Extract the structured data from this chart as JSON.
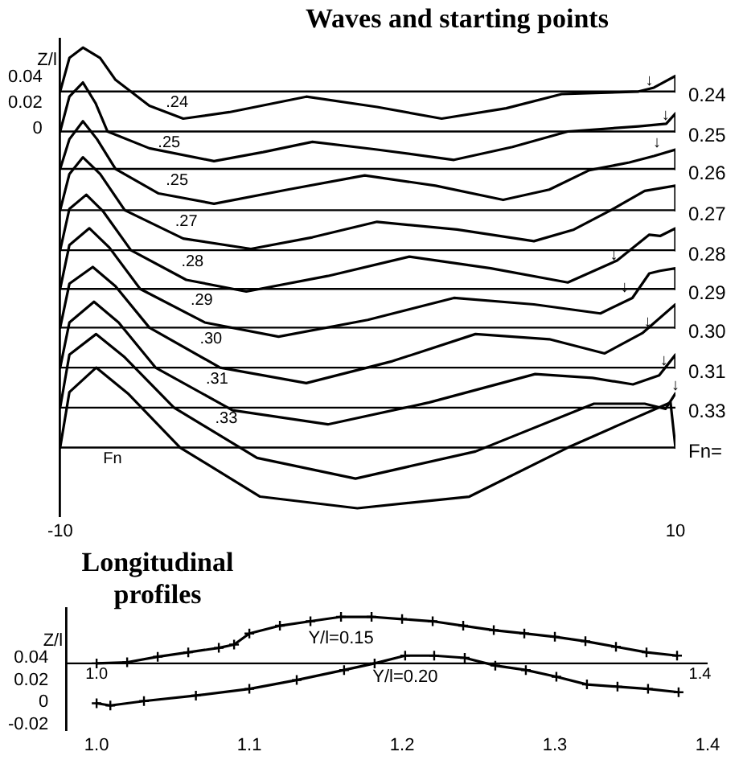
{
  "chart_data": [
    {
      "type": "line",
      "title": "Waves and starting points",
      "ylabel": "Z/l",
      "xlim": [
        -10,
        10
      ],
      "ylim": [
        -0.3,
        0.07
      ],
      "xticks": [
        -10,
        10
      ],
      "yticks": [
        0,
        0.02,
        0.04
      ],
      "grid": false,
      "marker": "none",
      "line_style": "solid",
      "series": [
        {
          "name": "0.24",
          "color": "#000000",
          "x": [
            -10,
            -9.7,
            -9.26,
            -8.7,
            -8.2,
            -7.1,
            -6.0,
            -4.5,
            -2.0,
            0.3,
            2.4,
            4.5,
            6.3,
            8.8,
            9.3,
            10,
            10
          ],
          "values": [
            0.029,
            0.055,
            0.063,
            0.055,
            0.038,
            0.018,
            0.008,
            0.013,
            0.025,
            0.017,
            0.008,
            0.016,
            0.027,
            0.029,
            0.032,
            0.041,
            0.029
          ]
        },
        {
          "name": "0.25",
          "color": "#000000",
          "x": [
            -10,
            -9.7,
            -9.26,
            -8.85,
            -8.46,
            -7.1,
            -5.0,
            -3.4,
            -1.8,
            0.3,
            2.8,
            4.7,
            6.5,
            8.8,
            9.7,
            10,
            10
          ],
          "values": [
            -0.002,
            0.025,
            0.036,
            0.02,
            -0.002,
            -0.015,
            -0.025,
            -0.018,
            -0.01,
            -0.016,
            -0.024,
            -0.014,
            -0.002,
            0.002,
            0.004,
            0.012,
            -0.002
          ]
        },
        {
          "name": "0.26",
          "color": "#000000",
          "x": [
            -10,
            -9.7,
            -9.26,
            -8.8,
            -8.2,
            -6.8,
            -5.0,
            -2.6,
            -0.1,
            2.2,
            4.4,
            5.9,
            7.2,
            8.5,
            9.3,
            10,
            10
          ],
          "values": [
            -0.031,
            -0.008,
            0.006,
            -0.008,
            -0.031,
            -0.05,
            -0.058,
            -0.047,
            -0.036,
            -0.044,
            -0.055,
            -0.047,
            -0.032,
            -0.026,
            -0.021,
            -0.016,
            -0.031
          ]
        },
        {
          "name": "0.27",
          "color": "#000000",
          "x": [
            -10,
            -9.7,
            -9.26,
            -8.7,
            -7.9,
            -6.0,
            -3.8,
            -1.8,
            0.3,
            2.9,
            5.4,
            6.7,
            7.9,
            9.0,
            10,
            10
          ],
          "values": [
            -0.063,
            -0.035,
            -0.022,
            -0.035,
            -0.063,
            -0.085,
            -0.093,
            -0.084,
            -0.072,
            -0.078,
            -0.087,
            -0.078,
            -0.063,
            -0.048,
            -0.044,
            -0.063
          ]
        },
        {
          "name": "0.28",
          "color": "#000000",
          "x": [
            -10,
            -9.7,
            -9.15,
            -8.6,
            -7.7,
            -5.9,
            -3.95,
            -1.3,
            1.35,
            4.0,
            6.5,
            8.1,
            9.15,
            9.5,
            10,
            10
          ],
          "values": [
            -0.094,
            -0.062,
            -0.051,
            -0.064,
            -0.094,
            -0.117,
            -0.126,
            -0.114,
            -0.099,
            -0.108,
            -0.119,
            -0.102,
            -0.082,
            -0.083,
            -0.077,
            -0.094
          ]
        },
        {
          "name": "0.29",
          "color": "#000000",
          "x": [
            -10,
            -9.7,
            -9.05,
            -8.4,
            -7.4,
            -5.3,
            -2.9,
            0,
            2.8,
            5.4,
            7.56,
            8.6,
            9.15,
            9.5,
            10,
            10
          ],
          "values": [
            -0.124,
            -0.09,
            -0.077,
            -0.092,
            -0.124,
            -0.15,
            -0.161,
            -0.148,
            -0.131,
            -0.136,
            -0.143,
            -0.131,
            -0.112,
            -0.11,
            -0.108,
            -0.124
          ]
        },
        {
          "name": "0.30",
          "color": "#000000",
          "x": [
            -10,
            -9.7,
            -8.94,
            -8.2,
            -7.1,
            -4.8,
            -2.0,
            0.8,
            3.5,
            5.9,
            7.7,
            8.94,
            10,
            10
          ],
          "values": [
            -0.154,
            -0.12,
            -0.107,
            -0.122,
            -0.154,
            -0.185,
            -0.197,
            -0.18,
            -0.159,
            -0.163,
            -0.174,
            -0.158,
            -0.136,
            -0.154
          ]
        },
        {
          "name": "0.31",
          "color": "#000000",
          "x": [
            -10,
            -9.7,
            -8.9,
            -8.1,
            -6.9,
            -4.4,
            -1.3,
            2.0,
            5.44,
            7.3,
            8.62,
            9.47,
            10,
            10
          ],
          "values": [
            -0.185,
            -0.15,
            -0.134,
            -0.15,
            -0.185,
            -0.218,
            -0.229,
            -0.212,
            -0.19,
            -0.193,
            -0.198,
            -0.191,
            -0.175,
            -0.185
          ]
        },
        {
          "name": "0.33",
          "color": "#000000",
          "x": [
            -10,
            -9.7,
            -8.83,
            -7.9,
            -6.3,
            -3.6,
            -0.4,
            3.5,
            7.35,
            9.0,
            9.68,
            10
          ],
          "values": [
            -0.216,
            -0.175,
            -0.159,
            -0.177,
            -0.216,
            -0.255,
            -0.271,
            -0.25,
            -0.213,
            -0.213,
            -0.217,
            -0.205
          ]
        },
        {
          "color": "#000000",
          "x": [
            -10,
            -9.7,
            -8.83,
            -7.8,
            -6.1,
            -3.5,
            -0.34,
            3.3,
            6.5,
            8.3,
            9.84,
            10
          ],
          "values": [
            -0.247,
            -0.204,
            -0.185,
            -0.205,
            -0.247,
            -0.285,
            -0.294,
            -0.285,
            -0.247,
            -0.228,
            -0.212,
            -0.247
          ]
        }
      ],
      "ref_lines": [
        {
          "axis": "y",
          "value": 0.029
        },
        {
          "axis": "y",
          "value": -0.002
        },
        {
          "axis": "y",
          "value": -0.031
        },
        {
          "axis": "y",
          "value": -0.063
        },
        {
          "axis": "y",
          "value": -0.094
        },
        {
          "axis": "y",
          "value": -0.124
        },
        {
          "axis": "y",
          "value": -0.154
        },
        {
          "axis": "y",
          "value": -0.185
        },
        {
          "axis": "y",
          "value": -0.216
        },
        {
          "axis": "y",
          "value": -0.247
        }
      ],
      "annotations": [
        "Fn=",
        {
          "text": ".24",
          "x": -6.2,
          "y": 0.029
        },
        {
          "text": ".25",
          "x": -6.46,
          "y": -0.002
        },
        {
          "text": ".25",
          "x": -6.2,
          "y": -0.031
        },
        {
          "text": ".27",
          "x": -5.9,
          "y": -0.063
        },
        {
          "text": ".28",
          "x": -5.7,
          "y": -0.094
        },
        {
          "text": ".29",
          "x": -5.4,
          "y": -0.124
        },
        {
          "text": ".30",
          "x": -5.1,
          "y": -0.154
        },
        {
          "text": ".31",
          "x": -4.9,
          "y": -0.185
        },
        {
          "text": ".33",
          "x": -4.6,
          "y": -0.216
        },
        {
          "text": "Fn",
          "x": -8.3,
          "y": -0.247
        },
        {
          "text": "↓",
          "x": 9.15,
          "y": 0.031
        },
        {
          "text": "↓",
          "x": 9.68,
          "y": 0.004
        },
        {
          "text": "↓",
          "x": 9.4,
          "y": -0.017
        },
        {
          "text": "↓",
          "x": 8.0,
          "y": -0.104
        },
        {
          "text": "↓",
          "x": 8.35,
          "y": -0.129
        },
        {
          "text": "↓",
          "x": 9.1,
          "y": -0.156
        },
        {
          "text": "↓",
          "x": 9.63,
          "y": -0.186
        },
        {
          "text": "↓",
          "x": 10,
          "y": -0.205
        }
      ]
    },
    {
      "type": "line",
      "title": "Longitudinal profiles",
      "ylabel": "Z/l",
      "xlim": [
        0.98,
        1.4
      ],
      "ylim": [
        -0.025,
        0.085
      ],
      "xticks": [
        {
          "value": 1,
          "label": "1.0"
        },
        1.1,
        1.2,
        1.3,
        {
          "value": 1.4,
          "label": "1.4"
        }
      ],
      "yticks": [
        -0.02,
        0,
        0.02,
        0.04
      ],
      "grid": false,
      "marker": "cross",
      "line_style": "solid",
      "series": [
        {
          "name": "Y/l=0.15",
          "color": "#000000",
          "x": [
            1.0,
            1.02,
            1.04,
            1.06,
            1.08,
            1.09,
            1.1,
            1.12,
            1.14,
            1.16,
            1.18,
            1.2,
            1.22,
            1.24,
            1.26,
            1.28,
            1.3,
            1.32,
            1.34,
            1.36,
            1.38
          ],
          "values": [
            0.035,
            0.036,
            0.041,
            0.045,
            0.049,
            0.052,
            0.062,
            0.069,
            0.073,
            0.077,
            0.077,
            0.075,
            0.073,
            0.069,
            0.065,
            0.062,
            0.059,
            0.055,
            0.05,
            0.045,
            0.042
          ]
        },
        {
          "name": "Y/l=0.20",
          "color": "#000000",
          "x": [
            1.0,
            1.009,
            1.031,
            1.065,
            1.1,
            1.131,
            1.162,
            1.182,
            1.202,
            1.221,
            1.241,
            1.261,
            1.281,
            1.301,
            1.321,
            1.341,
            1.361,
            1.381
          ],
          "values": [
            -0.001,
            -0.003,
            0.001,
            0.006,
            0.012,
            0.02,
            0.029,
            0.035,
            0.042,
            0.042,
            0.04,
            0.033,
            0.029,
            0.023,
            0.016,
            0.014,
            0.012,
            0.009
          ]
        }
      ],
      "ref_lines": [
        {
          "axis": "y",
          "value": 0.035
        }
      ],
      "annotations": [
        {
          "text": "1.0",
          "x": 1.0,
          "y": 0.035
        },
        {
          "text": "1.4",
          "x": 1.395,
          "y": 0.035
        }
      ]
    }
  ]
}
